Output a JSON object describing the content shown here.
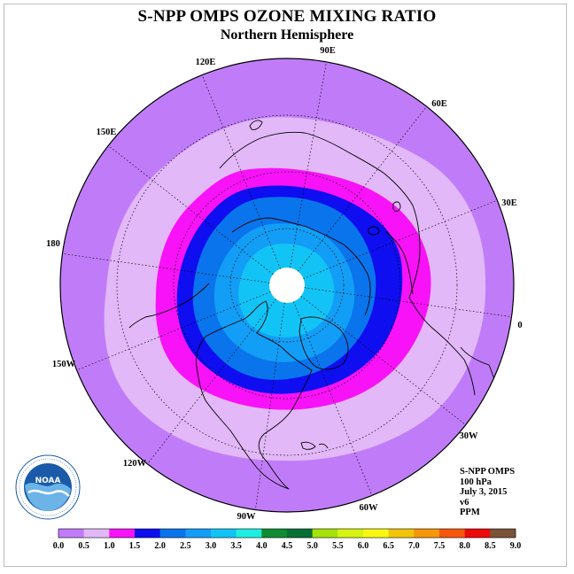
{
  "title": "S-NPP OMPS OZONE MIXING RATIO",
  "subtitle": "Northern Hemisphere",
  "longitude_labels": [
    "90E",
    "60E",
    "30E",
    "0",
    "30W",
    "60W",
    "90W",
    "120W",
    "150W",
    "180",
    "150E",
    "120E"
  ],
  "info": [
    "S-NPP OMPS",
    "100 hPa",
    "July 3, 2015",
    "v6",
    "PPM"
  ],
  "colorbar": {
    "colors": [
      "#c07cf8",
      "#e2b8f8",
      "#f812f8",
      "#0e0ef0",
      "#0a74ec",
      "#129ef6",
      "#12c4f6",
      "#1eeee0",
      "#0e8c32",
      "#067034",
      "#a6e20a",
      "#d6f410",
      "#f8f810",
      "#f2c40a",
      "#f6960a",
      "#f6560c",
      "#ee0a0a",
      "#7a5236"
    ],
    "ticks": [
      "0.0",
      "0.5",
      "1.0",
      "1.5",
      "2.0",
      "2.5",
      "3.0",
      "3.5",
      "4.0",
      "4.5",
      "5.0",
      "5.5",
      "6.0",
      "6.5",
      "7.0",
      "7.5",
      "8.0",
      "8.5",
      "9.0"
    ]
  },
  "colors": {
    "band_0_0_5": "#c07cf8",
    "band_0_5_1_0": "#e2b8f8",
    "band_1_0_1_5": "#f812f8",
    "band_1_5_2_0": "#0e0ef0",
    "band_2_0_2_5": "#0a74ec",
    "band_2_5_3_0": "#129ef6",
    "band_3_0_3_5": "#12c4f6"
  }
}
